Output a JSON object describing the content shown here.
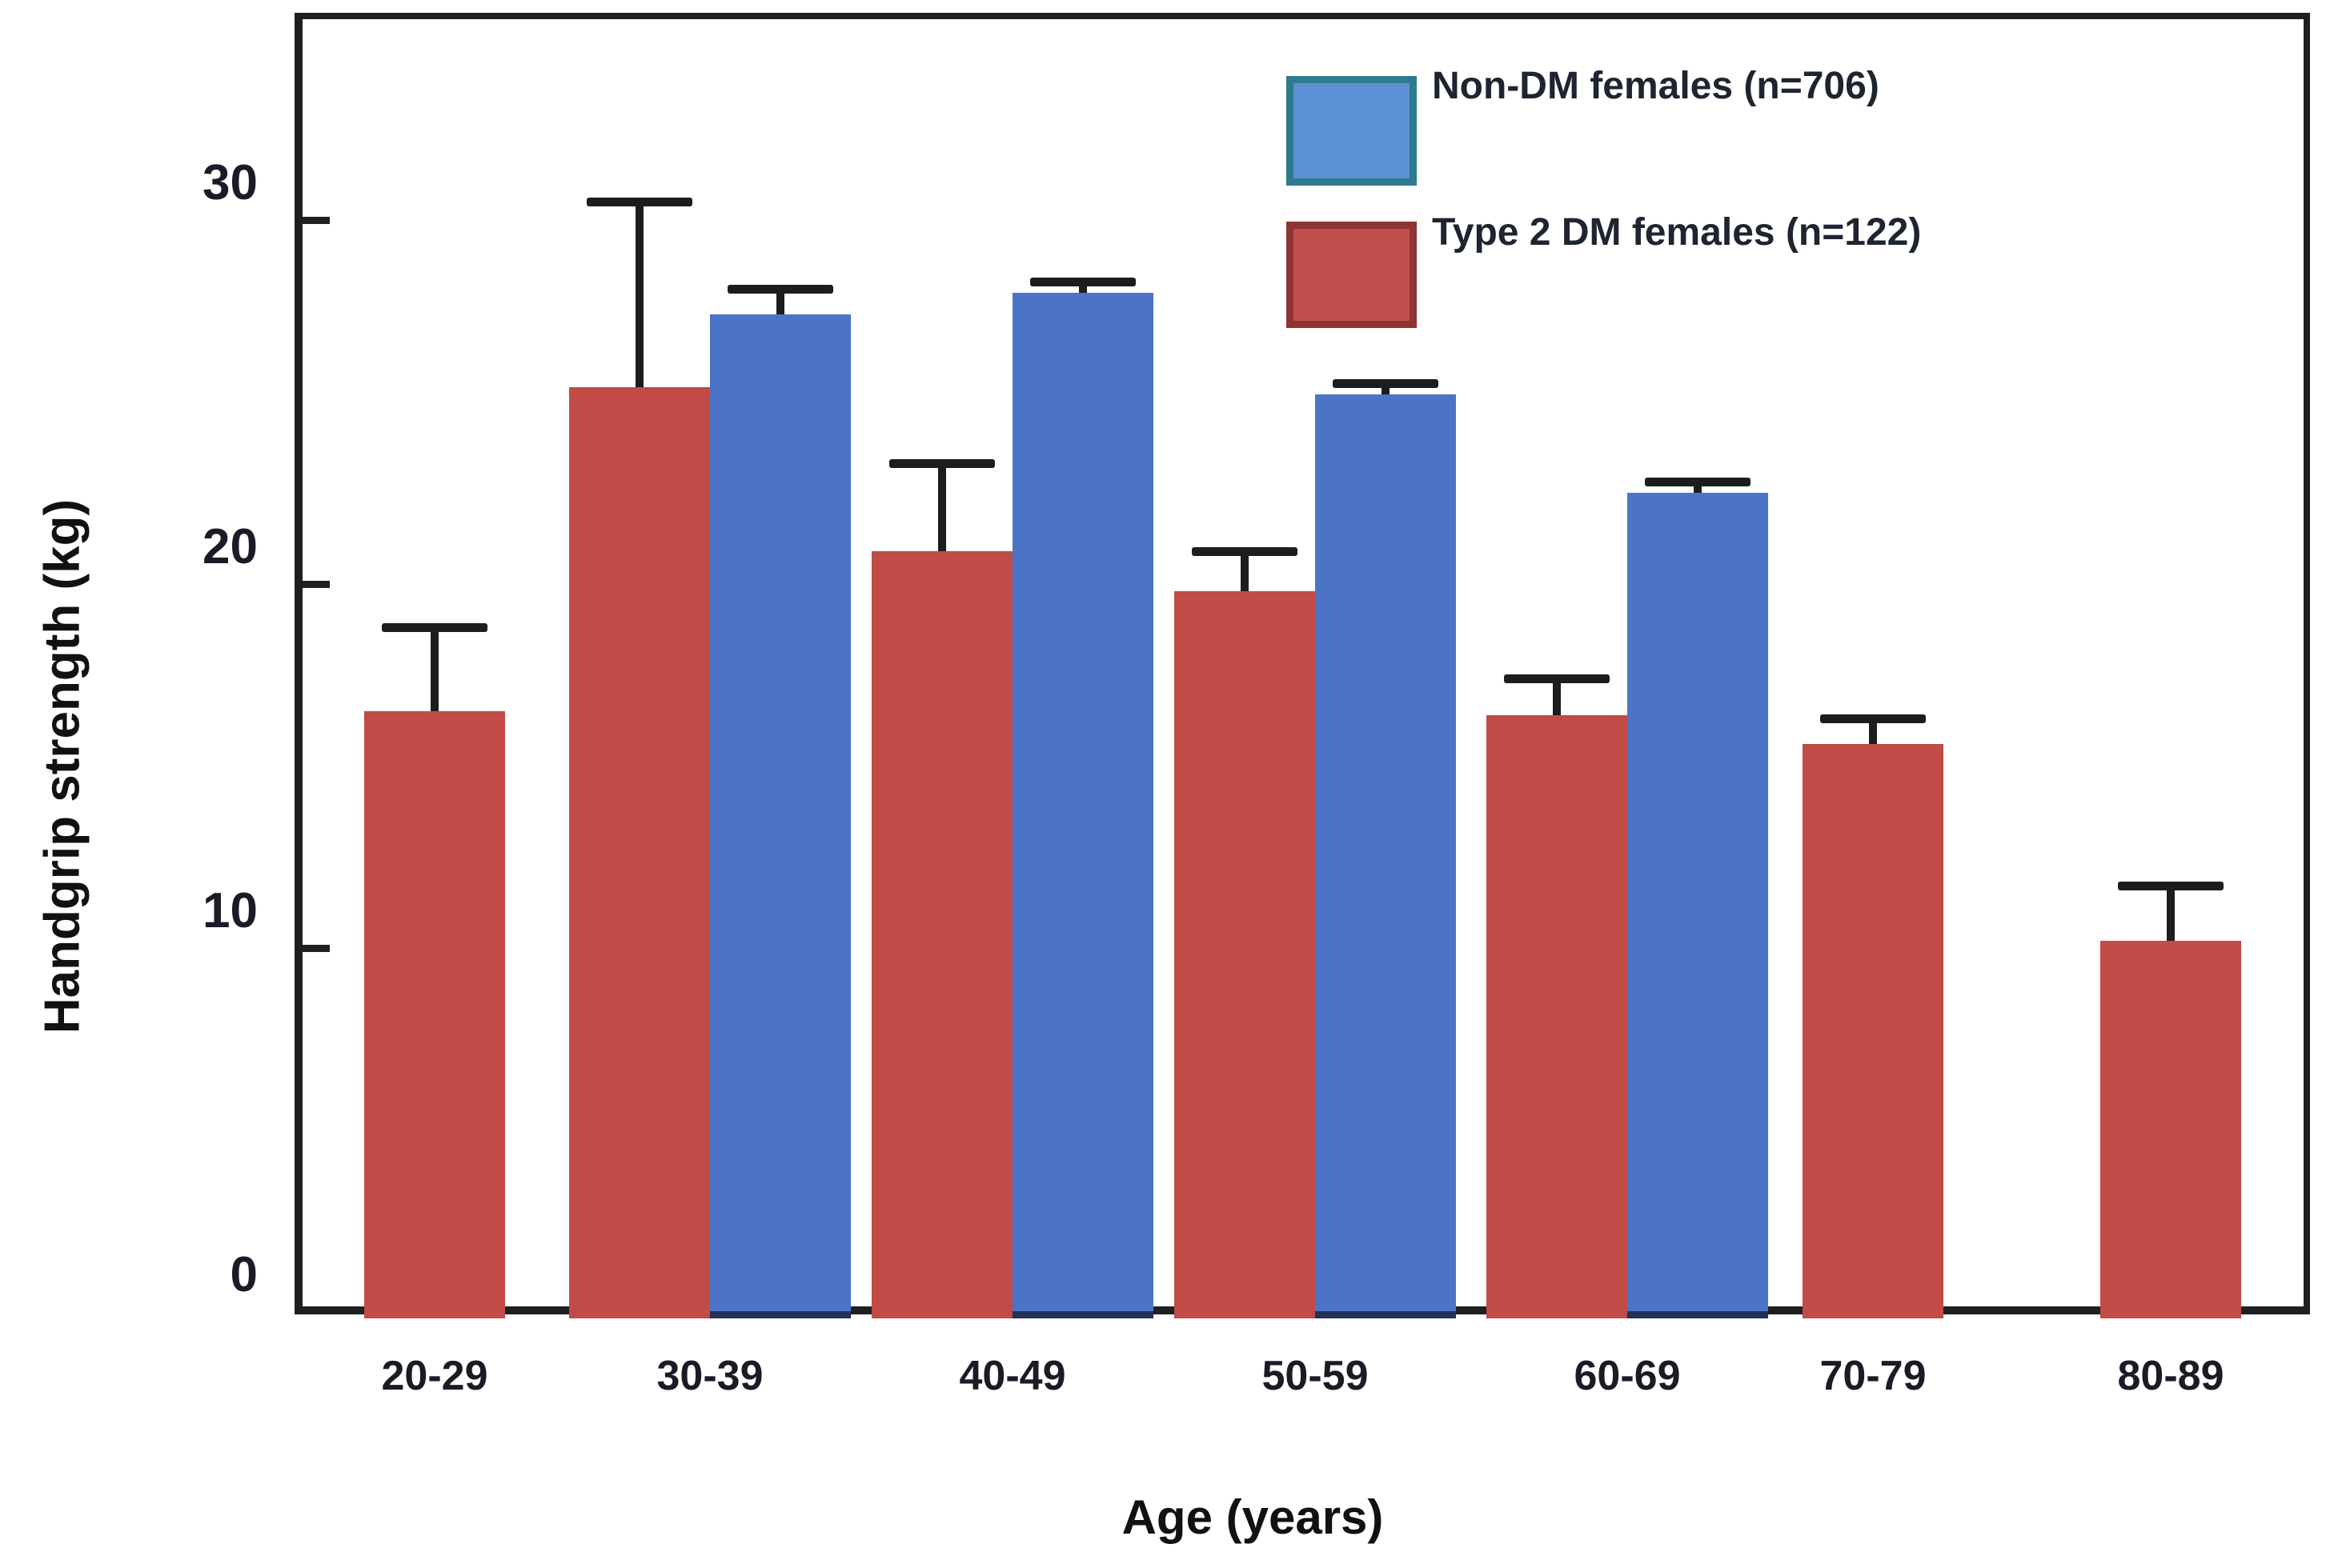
{
  "chart_data": {
    "type": "bar",
    "title": "",
    "xlabel": "Age (years)",
    "ylabel": "Handgrip strength (kg)",
    "categories": [
      "20-29",
      "30-39",
      "40-49",
      "50-59",
      "60-69",
      "70-79",
      "80-89"
    ],
    "series": [
      {
        "name": "Non-DM females (n=706)",
        "color": "#4b74c6",
        "values": [
          null,
          27.4,
          28.0,
          25.2,
          22.5,
          null,
          null
        ],
        "errors_upper": [
          null,
          0.7,
          0.3,
          0.3,
          0.3,
          null,
          null
        ]
      },
      {
        "name": "Type 2 DM females (n=122)",
        "color": "#c0504d",
        "values": [
          16.5,
          25.4,
          20.9,
          19.8,
          16.4,
          15.6,
          10.2
        ],
        "errors_upper": [
          2.3,
          5.1,
          2.4,
          1.1,
          1.0,
          0.7,
          1.5
        ]
      }
    ],
    "yticks": [
      0,
      10,
      20,
      30
    ],
    "ylim": [
      0,
      35.7
    ],
    "grid": false,
    "error_bars": "upper-only",
    "legend_position": "top-right"
  },
  "legend": {
    "blue_swatch_fill": "#5b90d2",
    "blue_swatch_border": "#2e7b8e",
    "red_swatch_fill": "#c0504d",
    "red_swatch_border": "#8e3431"
  }
}
